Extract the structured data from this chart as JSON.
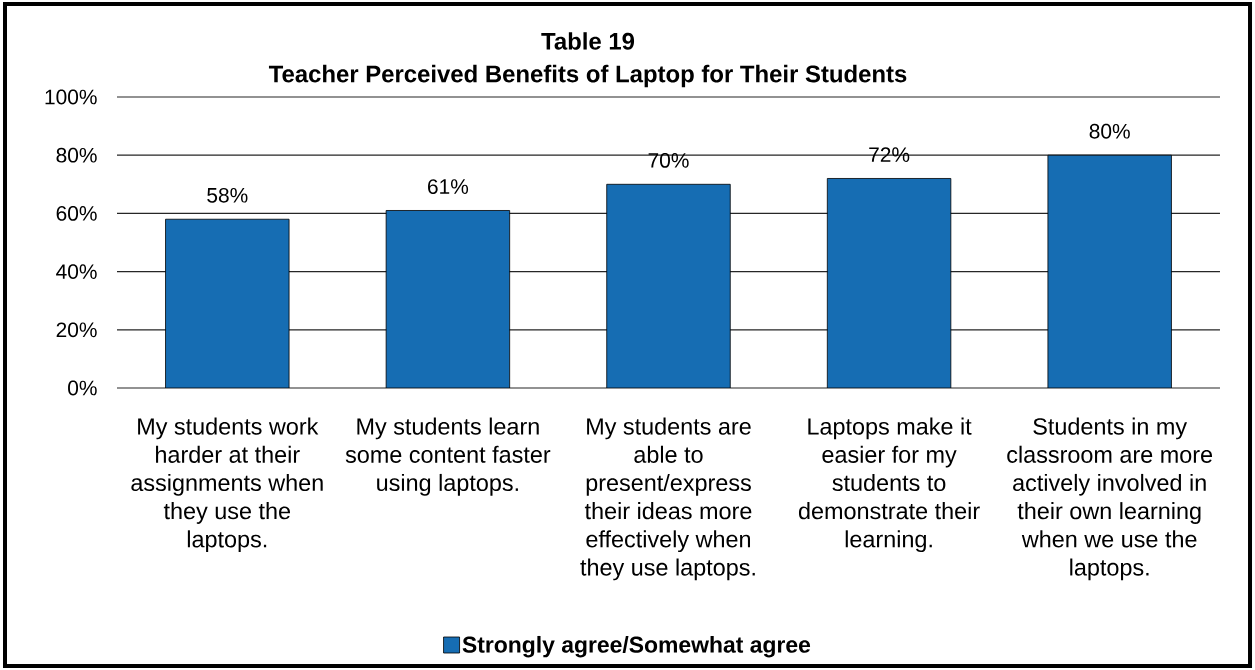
{
  "chart_data": {
    "type": "bar",
    "title": "Table 19",
    "subtitle": "Teacher Perceived Benefits of Laptop for Their Students",
    "categories": [
      "My students work harder at their assignments when they use the laptops.",
      "My students learn some content faster using laptops.",
      "My students are able to present/express their ideas more effectively when they use laptops.",
      "Laptops make it easier for my students to demonstrate their learning.",
      "Students in my classroom are more actively involved in their own learning when we use the laptops."
    ],
    "series": [
      {
        "name": "Strongly agree/Somewhat agree",
        "color": "#166db3",
        "values": [
          58,
          61,
          70,
          72,
          80
        ],
        "value_labels": [
          "58%",
          "61%",
          "70%",
          "72%",
          "80%"
        ]
      }
    ],
    "ylim": [
      0,
      100
    ],
    "yticks": [
      {
        "value": 0,
        "label": "0%"
      },
      {
        "value": 20,
        "label": "20%"
      },
      {
        "value": 40,
        "label": "40%"
      },
      {
        "value": 60,
        "label": "60%"
      },
      {
        "value": 80,
        "label": "80%"
      },
      {
        "value": 100,
        "label": "100%"
      }
    ],
    "grid": "y",
    "legend": "bottom"
  }
}
